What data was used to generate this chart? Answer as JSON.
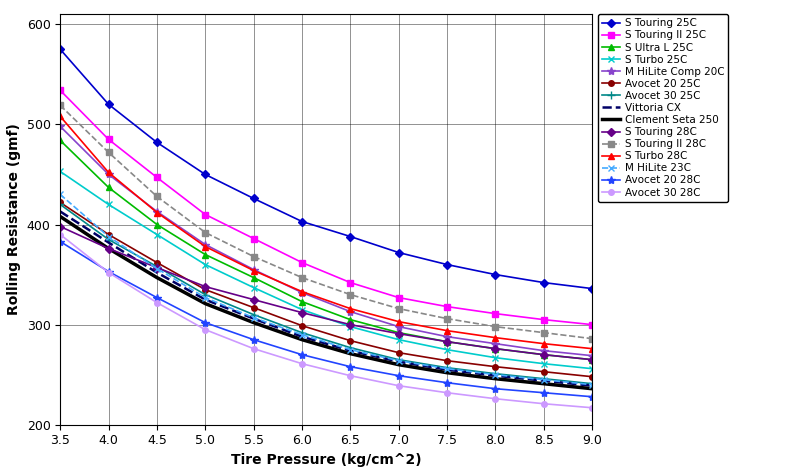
{
  "xlabel": "Tire Pressure (kg/cm^2)",
  "ylabel": "Rolling Resistance (gmf)",
  "xlim": [
    3.5,
    9.0
  ],
  "ylim": [
    200,
    610
  ],
  "xticks": [
    3.5,
    4.0,
    4.5,
    5.0,
    5.5,
    6.0,
    6.5,
    7.0,
    7.5,
    8.0,
    8.5,
    9.0
  ],
  "yticks": [
    200,
    300,
    400,
    500,
    600
  ],
  "series": [
    {
      "label": "S Touring 25C",
      "color": "#0000CC",
      "marker": "D",
      "markersize": 4,
      "linestyle": "-",
      "linewidth": 1.2,
      "x": [
        3.5,
        4.0,
        4.5,
        5.0,
        5.5,
        6.0,
        6.5,
        7.0,
        7.5,
        8.0,
        8.5,
        9.0
      ],
      "y": [
        575,
        520,
        482,
        450,
        426,
        403,
        388,
        372,
        360,
        350,
        342,
        336
      ]
    },
    {
      "label": "S Touring II 25C",
      "color": "#FF00FF",
      "marker": "s",
      "markersize": 4,
      "linestyle": "-",
      "linewidth": 1.2,
      "x": [
        3.5,
        4.0,
        4.5,
        5.0,
        5.5,
        6.0,
        6.5,
        7.0,
        7.5,
        8.0,
        8.5,
        9.0
      ],
      "y": [
        534,
        485,
        447,
        410,
        386,
        362,
        342,
        327,
        318,
        311,
        305,
        300
      ]
    },
    {
      "label": "S Ultra L 25C",
      "color": "#00BB00",
      "marker": "^",
      "markersize": 5,
      "linestyle": "-",
      "linewidth": 1.2,
      "x": [
        3.5,
        4.0,
        4.5,
        5.0,
        5.5,
        6.0,
        6.5,
        7.0,
        7.5,
        8.0,
        8.5,
        9.0
      ],
      "y": [
        484,
        437,
        400,
        370,
        347,
        323,
        305,
        292,
        283,
        276,
        270,
        265
      ]
    },
    {
      "label": "S Turbo 25C",
      "color": "#00CCCC",
      "marker": "x",
      "markersize": 5,
      "linestyle": "-",
      "linewidth": 1.2,
      "x": [
        3.5,
        4.0,
        4.5,
        5.0,
        5.5,
        6.0,
        6.5,
        7.0,
        7.5,
        8.0,
        8.5,
        9.0
      ],
      "y": [
        453,
        420,
        390,
        360,
        337,
        315,
        298,
        285,
        275,
        267,
        261,
        256
      ]
    },
    {
      "label": "M HiLite Comp 20C",
      "color": "#8844CC",
      "marker": "*",
      "markersize": 6,
      "linestyle": "-",
      "linewidth": 1.2,
      "x": [
        3.5,
        4.0,
        4.5,
        5.0,
        5.5,
        6.0,
        6.5,
        7.0,
        7.5,
        8.0,
        8.5,
        9.0
      ],
      "y": [
        498,
        450,
        413,
        380,
        355,
        332,
        313,
        298,
        288,
        281,
        274,
        269
      ]
    },
    {
      "label": "Avocet 20 25C",
      "color": "#880000",
      "marker": "o",
      "markersize": 4,
      "linestyle": "-",
      "linewidth": 1.2,
      "x": [
        3.5,
        4.0,
        4.5,
        5.0,
        5.5,
        6.0,
        6.5,
        7.0,
        7.5,
        8.0,
        8.5,
        9.0
      ],
      "y": [
        422,
        390,
        362,
        335,
        317,
        299,
        284,
        272,
        264,
        258,
        253,
        248
      ]
    },
    {
      "label": "Avocet 30 25C",
      "color": "#008888",
      "marker": "+",
      "markersize": 6,
      "linestyle": "-",
      "linewidth": 1.2,
      "x": [
        3.5,
        4.0,
        4.5,
        5.0,
        5.5,
        6.0,
        6.5,
        7.0,
        7.5,
        8.0,
        8.5,
        9.0
      ],
      "y": [
        420,
        385,
        358,
        330,
        310,
        292,
        277,
        265,
        257,
        251,
        246,
        241
      ]
    },
    {
      "label": "Vittoria CX",
      "color": "#000066",
      "marker": "None",
      "markersize": 0,
      "linestyle": "--",
      "linewidth": 1.8,
      "x": [
        3.5,
        4.0,
        4.5,
        5.0,
        5.5,
        6.0,
        6.5,
        7.0,
        7.5,
        8.0,
        8.5,
        9.0
      ],
      "y": [
        413,
        382,
        352,
        325,
        306,
        288,
        274,
        263,
        255,
        249,
        244,
        239
      ]
    },
    {
      "label": "Clement Seta 250",
      "color": "#000000",
      "marker": "None",
      "markersize": 0,
      "linestyle": "-",
      "linewidth": 2.5,
      "x": [
        3.5,
        4.0,
        4.5,
        5.0,
        5.5,
        6.0,
        6.5,
        7.0,
        7.5,
        8.0,
        8.5,
        9.0
      ],
      "y": [
        408,
        376,
        347,
        321,
        302,
        285,
        271,
        260,
        252,
        246,
        241,
        236
      ]
    },
    {
      "label": "S Touring 28C",
      "color": "#660088",
      "marker": "D",
      "markersize": 4,
      "linestyle": "-",
      "linewidth": 1.2,
      "x": [
        3.5,
        4.0,
        4.5,
        5.0,
        5.5,
        6.0,
        6.5,
        7.0,
        7.5,
        8.0,
        8.5,
        9.0
      ],
      "y": [
        398,
        376,
        357,
        338,
        325,
        312,
        300,
        291,
        283,
        276,
        270,
        265
      ]
    },
    {
      "label": "S Touring II 28C",
      "color": "#888888",
      "marker": "s",
      "markersize": 4,
      "linestyle": "--",
      "linewidth": 1.2,
      "x": [
        3.5,
        4.0,
        4.5,
        5.0,
        5.5,
        6.0,
        6.5,
        7.0,
        7.5,
        8.0,
        8.5,
        9.0
      ],
      "y": [
        519,
        472,
        428,
        392,
        368,
        347,
        330,
        316,
        306,
        298,
        292,
        286
      ]
    },
    {
      "label": "S Turbo 28C",
      "color": "#FF0000",
      "marker": "^",
      "markersize": 5,
      "linestyle": "-",
      "linewidth": 1.2,
      "x": [
        3.5,
        4.0,
        4.5,
        5.0,
        5.5,
        6.0,
        6.5,
        7.0,
        7.5,
        8.0,
        8.5,
        9.0
      ],
      "y": [
        508,
        452,
        412,
        378,
        354,
        333,
        316,
        303,
        294,
        287,
        281,
        276
      ]
    },
    {
      "label": "M HiLite 23C",
      "color": "#44AAFF",
      "marker": "x",
      "markersize": 5,
      "linestyle": "--",
      "linewidth": 1.2,
      "x": [
        3.5,
        4.0,
        4.5,
        5.0,
        5.5,
        6.0,
        6.5,
        7.0,
        7.5,
        8.0,
        8.5,
        9.0
      ],
      "y": [
        430,
        388,
        356,
        327,
        307,
        290,
        275,
        264,
        256,
        250,
        245,
        240
      ]
    },
    {
      "label": "Avocet 20 28C",
      "color": "#2244FF",
      "marker": "*",
      "markersize": 6,
      "linestyle": "-",
      "linewidth": 1.2,
      "x": [
        3.5,
        4.0,
        4.5,
        5.0,
        5.5,
        6.0,
        6.5,
        7.0,
        7.5,
        8.0,
        8.5,
        9.0
      ],
      "y": [
        383,
        353,
        327,
        302,
        285,
        270,
        258,
        249,
        242,
        236,
        232,
        228
      ]
    },
    {
      "label": "Avocet 30 28C",
      "color": "#CC99FF",
      "marker": "o",
      "markersize": 4,
      "linestyle": "-",
      "linewidth": 1.2,
      "x": [
        3.5,
        4.0,
        4.5,
        5.0,
        5.5,
        6.0,
        6.5,
        7.0,
        7.5,
        8.0,
        8.5,
        9.0
      ],
      "y": [
        390,
        352,
        322,
        295,
        276,
        261,
        249,
        239,
        232,
        226,
        221,
        217
      ]
    }
  ],
  "legend_fontsize": 7.5,
  "axis_label_fontsize": 10,
  "tick_fontsize": 9
}
